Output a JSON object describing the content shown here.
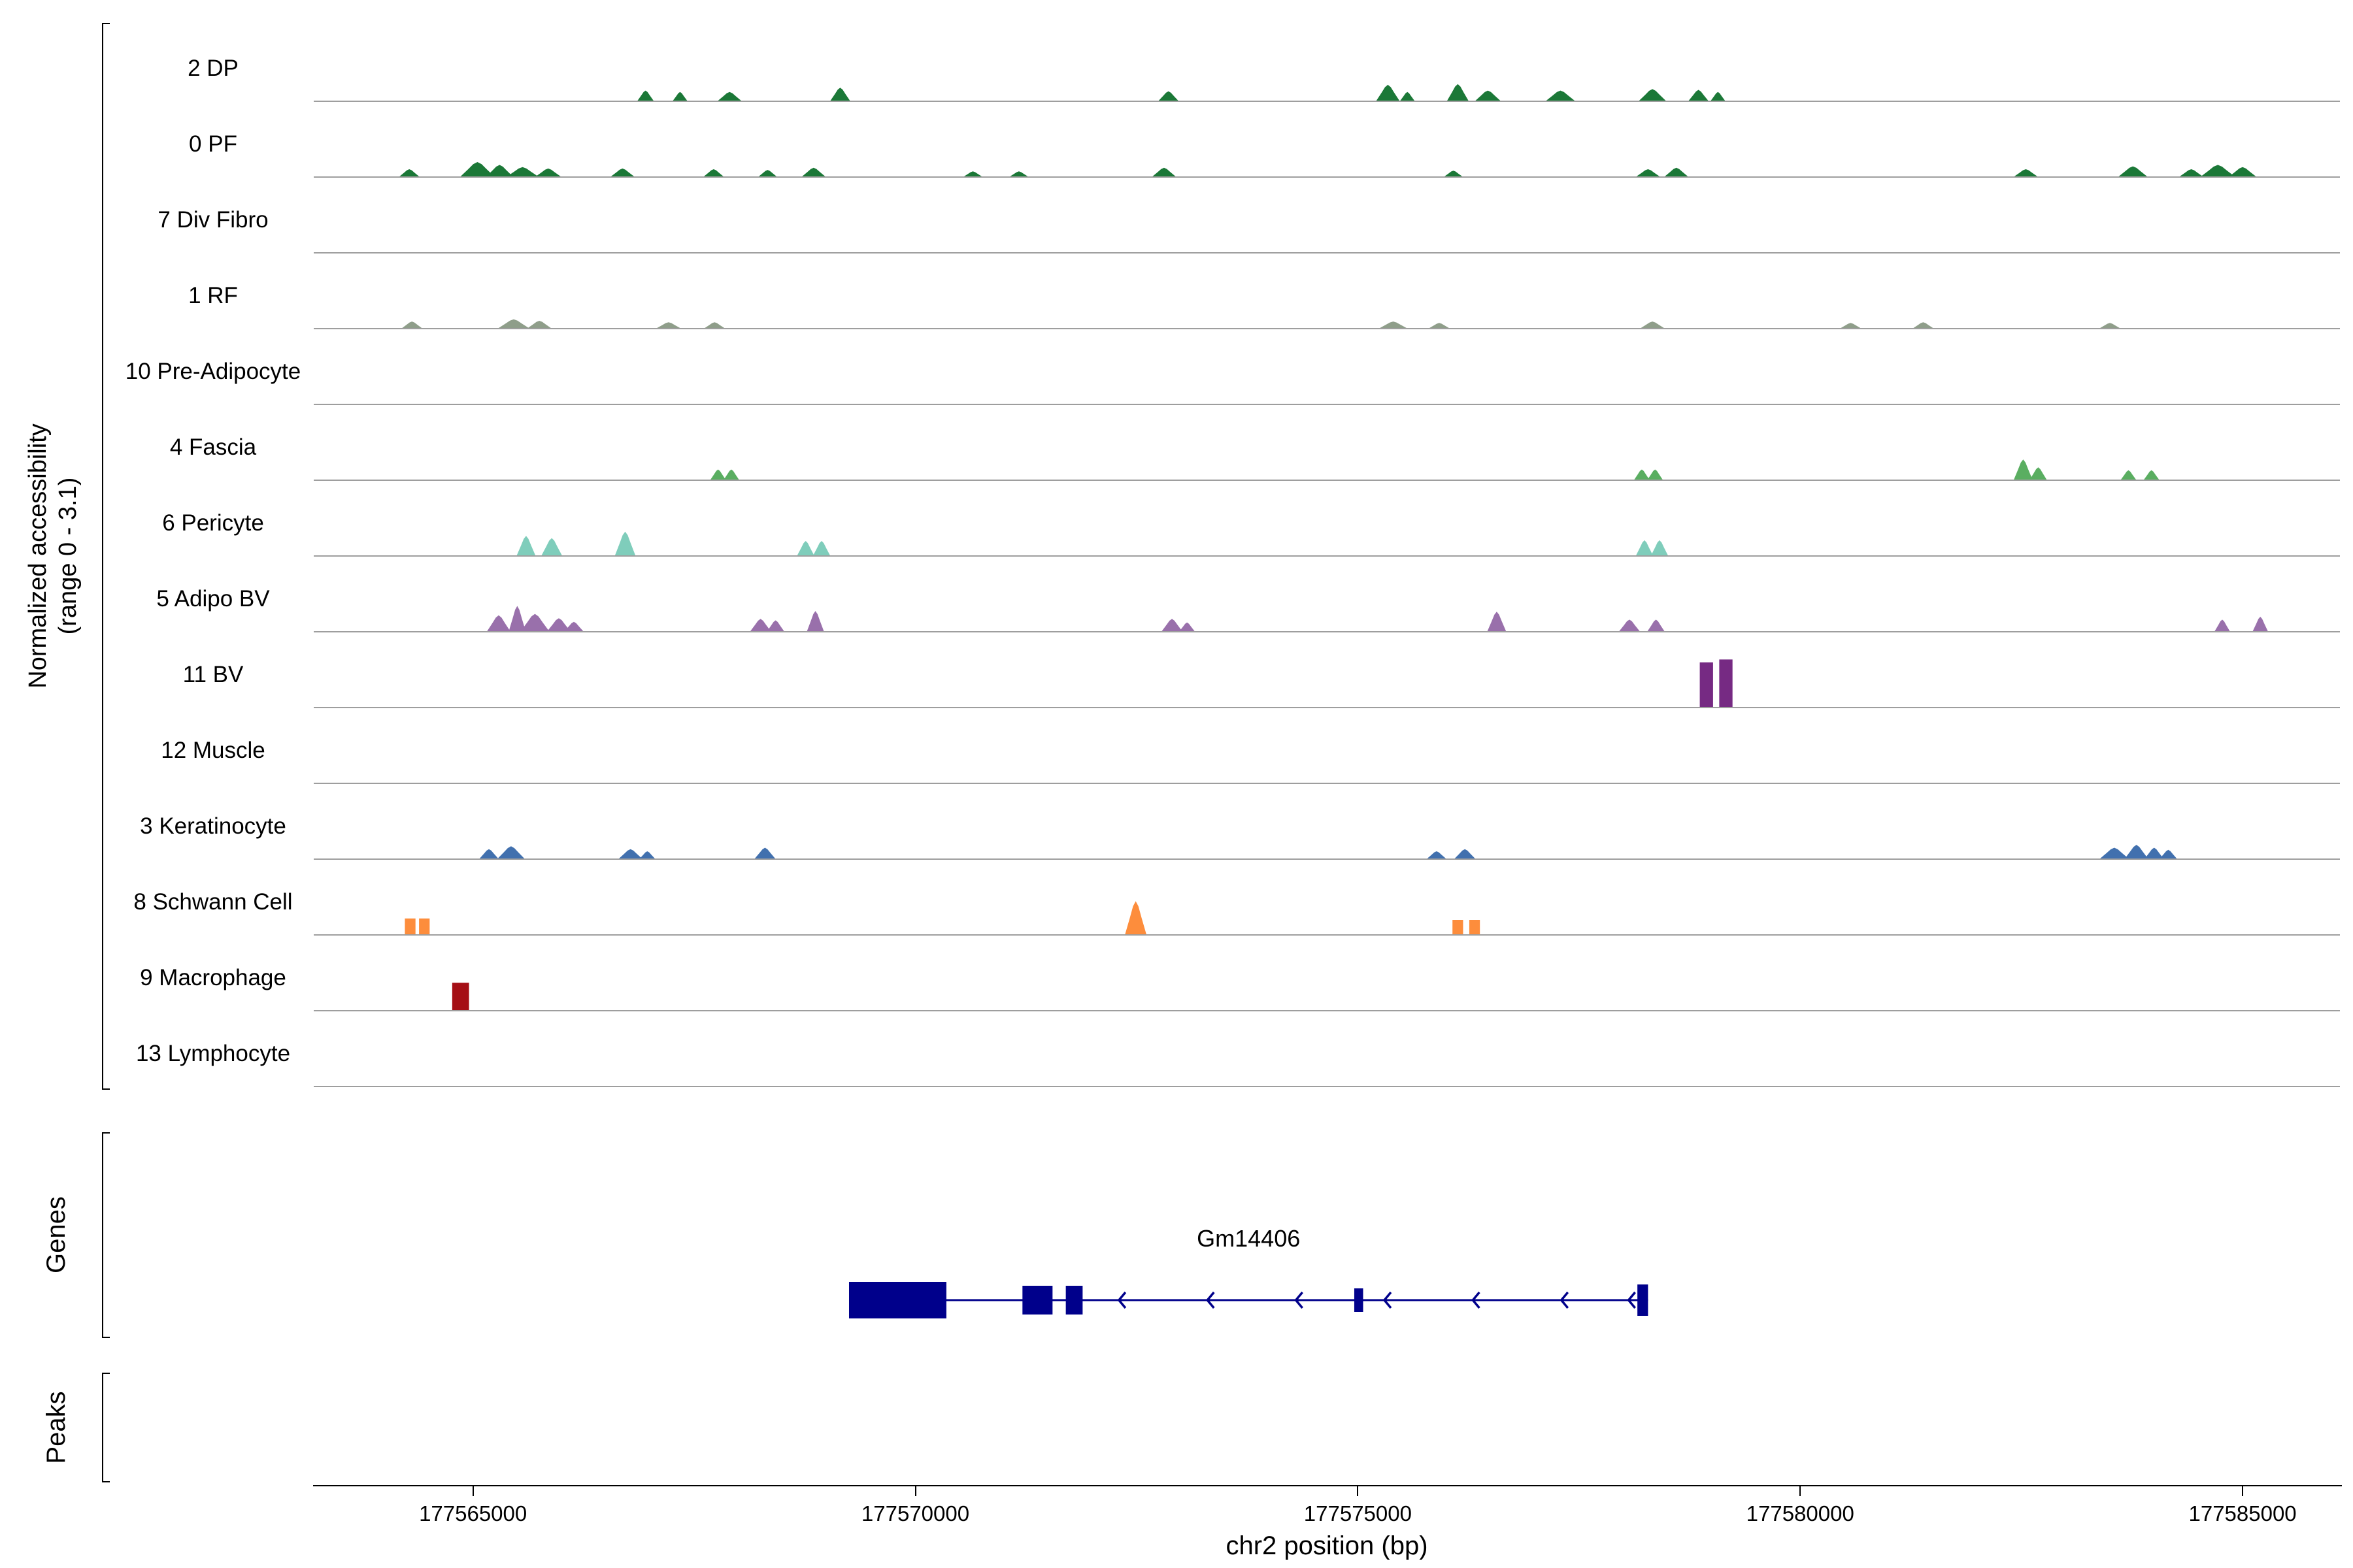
{
  "chart_data": {
    "type": "area",
    "subtype": "genome_accessibility_track_plot",
    "title": "",
    "xlabel": "chr2 position (bp)",
    "ylabel_line1": "Normalized accessibility",
    "ylabel_line2": "(range 0 - 3.1)",
    "sections": {
      "genes": "Genes",
      "peaks": "Peaks"
    },
    "x_range_bp": [
      177563200,
      177586100
    ],
    "x_ticks": [
      {
        "bp": 177565000,
        "label": "177565000"
      },
      {
        "bp": 177570000,
        "label": "177570000"
      },
      {
        "bp": 177575000,
        "label": "177575000"
      },
      {
        "bp": 177580000,
        "label": "177580000"
      },
      {
        "bp": 177585000,
        "label": "177585000"
      }
    ],
    "track_baseline_color": "#9e9e9e",
    "peaks_format": "[center_bp, width_bp, height_frac_of_range_0_to_3.1, optional_shape('rect')]",
    "tracks": [
      {
        "label": "2 DP",
        "color": "#1b7837",
        "peaks": [
          [
            177566950,
            180,
            0.14
          ],
          [
            177567340,
            160,
            0.12
          ],
          [
            177567900,
            260,
            0.12
          ],
          [
            177569150,
            220,
            0.18
          ],
          [
            177572860,
            220,
            0.13
          ],
          [
            177575340,
            260,
            0.22
          ],
          [
            177575560,
            160,
            0.12
          ],
          [
            177576130,
            240,
            0.23
          ],
          [
            177576470,
            280,
            0.14
          ],
          [
            177577290,
            320,
            0.14
          ],
          [
            177578330,
            300,
            0.16
          ],
          [
            177578850,
            220,
            0.15
          ],
          [
            177579070,
            160,
            0.12
          ]
        ]
      },
      {
        "label": "0 PF",
        "color": "#1b7837",
        "peaks": [
          [
            177564280,
            220,
            0.1
          ],
          [
            177565050,
            380,
            0.2
          ],
          [
            177565300,
            300,
            0.16
          ],
          [
            177565560,
            350,
            0.13
          ],
          [
            177565850,
            280,
            0.11
          ],
          [
            177566690,
            260,
            0.11
          ],
          [
            177567720,
            220,
            0.1
          ],
          [
            177568330,
            200,
            0.09
          ],
          [
            177568850,
            260,
            0.12
          ],
          [
            177570650,
            200,
            0.07
          ],
          [
            177571170,
            200,
            0.07
          ],
          [
            177572810,
            260,
            0.12
          ],
          [
            177576080,
            200,
            0.08
          ],
          [
            177578280,
            260,
            0.1
          ],
          [
            177578600,
            260,
            0.12
          ],
          [
            177582550,
            260,
            0.1
          ],
          [
            177583760,
            320,
            0.14
          ],
          [
            177584420,
            260,
            0.1
          ],
          [
            177584720,
            380,
            0.16
          ],
          [
            177585000,
            300,
            0.13
          ]
        ]
      },
      {
        "label": "7 Div Fibro",
        "color": "#7a9a6d",
        "peaks": []
      },
      {
        "label": "1 RF",
        "color": "#8f9e8a",
        "peaks": [
          [
            177564310,
            220,
            0.09
          ],
          [
            177565460,
            340,
            0.12
          ],
          [
            177565750,
            260,
            0.1
          ],
          [
            177567210,
            260,
            0.08
          ],
          [
            177567730,
            220,
            0.08
          ],
          [
            177575400,
            300,
            0.09
          ],
          [
            177575920,
            220,
            0.07
          ],
          [
            177578330,
            260,
            0.09
          ],
          [
            177580570,
            220,
            0.07
          ],
          [
            177581390,
            220,
            0.08
          ],
          [
            177583500,
            220,
            0.07
          ]
        ]
      },
      {
        "label": "10 Pre-Adipocyte",
        "color": "#6abf6e",
        "peaks": []
      },
      {
        "label": "4 Fascia",
        "color": "#5aae61",
        "peaks": [
          [
            177567770,
            170,
            0.14
          ],
          [
            177567920,
            170,
            0.14
          ],
          [
            177578210,
            170,
            0.14
          ],
          [
            177578360,
            170,
            0.14
          ],
          [
            177582520,
            210,
            0.28
          ],
          [
            177582690,
            190,
            0.17
          ],
          [
            177583710,
            170,
            0.13
          ],
          [
            177583970,
            170,
            0.13
          ]
        ]
      },
      {
        "label": "6 Pericyte",
        "color": "#7fcdbb",
        "peaks": [
          [
            177565600,
            210,
            0.27
          ],
          [
            177565890,
            230,
            0.24
          ],
          [
            177566720,
            230,
            0.33
          ],
          [
            177568760,
            190,
            0.2
          ],
          [
            177568940,
            190,
            0.2
          ],
          [
            177578240,
            190,
            0.21
          ],
          [
            177578410,
            190,
            0.21
          ]
        ]
      },
      {
        "label": "5 Adipo BV",
        "color": "#9970ab",
        "peaks": [
          [
            177565290,
            260,
            0.22
          ],
          [
            177565500,
            190,
            0.35
          ],
          [
            177565700,
            320,
            0.24
          ],
          [
            177565970,
            260,
            0.18
          ],
          [
            177566140,
            210,
            0.13
          ],
          [
            177568250,
            230,
            0.17
          ],
          [
            177568420,
            190,
            0.15
          ],
          [
            177568870,
            190,
            0.28
          ],
          [
            177572900,
            230,
            0.17
          ],
          [
            177573070,
            170,
            0.12
          ],
          [
            177576570,
            210,
            0.27
          ],
          [
            177578070,
            230,
            0.16
          ],
          [
            177578370,
            190,
            0.16
          ],
          [
            177584770,
            170,
            0.16
          ],
          [
            177585200,
            170,
            0.2
          ]
        ]
      },
      {
        "label": "11 BV",
        "color": "#762a83",
        "peaks": [
          [
            177578940,
            150,
            0.62,
            "rect"
          ],
          [
            177579160,
            150,
            0.66,
            "rect"
          ]
        ]
      },
      {
        "label": "12 Muscle",
        "color": "#b87333",
        "peaks": []
      },
      {
        "label": "3 Keratinocyte",
        "color": "#4170ae",
        "peaks": [
          [
            177565180,
            210,
            0.13
          ],
          [
            177565430,
            300,
            0.17
          ],
          [
            177566780,
            260,
            0.13
          ],
          [
            177566970,
            170,
            0.1
          ],
          [
            177568300,
            230,
            0.15
          ],
          [
            177575890,
            210,
            0.1
          ],
          [
            177576210,
            230,
            0.13
          ],
          [
            177583550,
            320,
            0.15
          ],
          [
            177583800,
            260,
            0.19
          ],
          [
            177584000,
            210,
            0.15
          ],
          [
            177584160,
            190,
            0.12
          ]
        ]
      },
      {
        "label": "8 Schwann Cell",
        "color": "#fd8d3c",
        "peaks": [
          [
            177564290,
            120,
            0.22,
            "rect"
          ],
          [
            177564450,
            120,
            0.22,
            "rect"
          ],
          [
            177572490,
            240,
            0.46
          ],
          [
            177576130,
            120,
            0.2,
            "rect"
          ],
          [
            177576320,
            120,
            0.2,
            "rect"
          ]
        ]
      },
      {
        "label": "9 Macrophage",
        "color": "#a50f15",
        "peaks": [
          [
            177564860,
            190,
            0.38,
            "rect"
          ]
        ]
      },
      {
        "label": "13 Lymphocyte",
        "color": "#c5b358",
        "peaks": []
      }
    ],
    "gene": {
      "name": "Gm14406",
      "strand": "-",
      "color": "#00008b",
      "start": 177569250,
      "end": 177578280,
      "exons": [
        {
          "start": 177569250,
          "end": 177570350,
          "h": 56
        },
        {
          "start": 177571210,
          "end": 177571550,
          "h": 44
        },
        {
          "start": 177571700,
          "end": 177571890,
          "h": 44
        },
        {
          "start": 177574960,
          "end": 177575060,
          "h": 36
        },
        {
          "start": 177578160,
          "end": 177578280,
          "h": 48
        }
      ],
      "arrows_bp": [
        177572300,
        177573300,
        177574300,
        177575300,
        177576300,
        177577300,
        177578060
      ]
    }
  }
}
